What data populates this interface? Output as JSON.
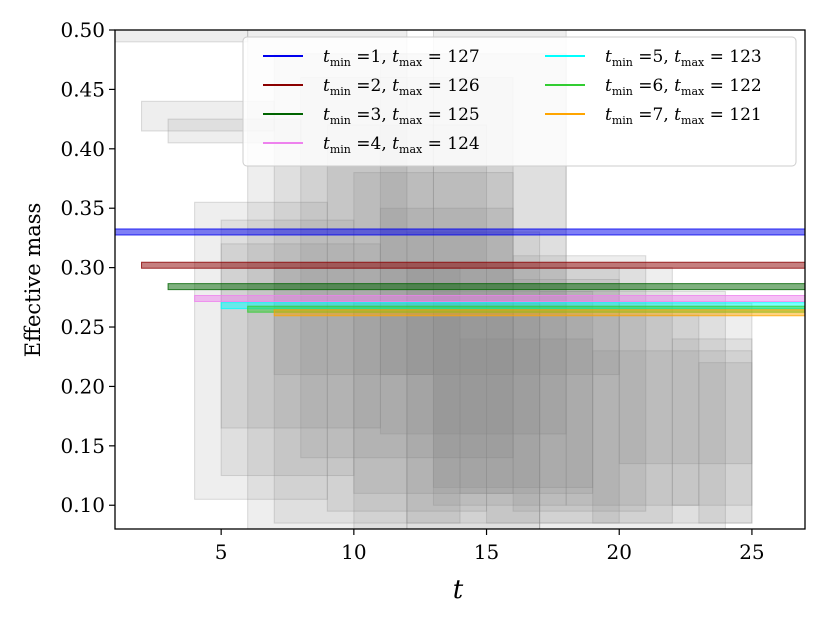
{
  "chart_data": {
    "type": "scatter",
    "xlabel": "t",
    "ylabel": "Effective mass",
    "xlim": [
      1,
      27
    ],
    "ylim": [
      0.08,
      0.5
    ],
    "x_ticks": [
      5,
      10,
      15,
      20,
      25
    ],
    "y_ticks": [
      0.1,
      0.15,
      0.2,
      0.25,
      0.3,
      0.35,
      0.4,
      0.45,
      0.5
    ],
    "grid": false,
    "legend_position": "top-right",
    "legend_columns": 2,
    "series": [
      {
        "tmin": "1",
        "tmax": "127",
        "color": "#0000ee",
        "value": 0.33,
        "x_start": 1,
        "x_end": 27
      },
      {
        "tmin": "2",
        "tmax": "126",
        "color": "#8b0000",
        "value": 0.302,
        "x_start": 2,
        "x_end": 27
      },
      {
        "tmin": "3",
        "tmax": "125",
        "color": "#006400",
        "value": 0.284,
        "x_start": 3,
        "x_end": 27
      },
      {
        "tmin": "4",
        "tmax": "124",
        "color": "#ee82ee",
        "value": 0.274,
        "x_start": 4,
        "x_end": 27
      },
      {
        "tmin": "5",
        "tmax": "123",
        "color": "#00ffff",
        "value": 0.268,
        "x_start": 5,
        "x_end": 27
      },
      {
        "tmin": "6",
        "tmax": "122",
        "color": "#32cd32",
        "value": 0.265,
        "x_start": 6,
        "x_end": 27
      },
      {
        "tmin": "7",
        "tmax": "121",
        "color": "#ffa500",
        "value": 0.262,
        "x_start": 7,
        "x_end": 27
      }
    ],
    "background_boxes": [
      {
        "x": [
          0,
          6
        ],
        "y": [
          0.49,
          0.5
        ]
      },
      {
        "x": [
          2,
          7
        ],
        "y": [
          0.415,
          0.44
        ]
      },
      {
        "x": [
          3,
          8
        ],
        "y": [
          0.405,
          0.425
        ]
      },
      {
        "x": [
          4,
          9
        ],
        "y": [
          0.105,
          0.355
        ]
      },
      {
        "x": [
          5,
          10
        ],
        "y": [
          0.125,
          0.34
        ]
      },
      {
        "x": [
          5,
          11
        ],
        "y": [
          0.165,
          0.32
        ]
      },
      {
        "x": [
          6,
          12
        ],
        "y": [
          0.08,
          0.5
        ]
      },
      {
        "x": [
          7,
          13
        ],
        "y": [
          0.21,
          0.48
        ]
      },
      {
        "x": [
          7,
          14
        ],
        "y": [
          0.085,
          0.3
        ]
      },
      {
        "x": [
          8,
          16
        ],
        "y": [
          0.14,
          0.46
        ]
      },
      {
        "x": [
          9,
          15
        ],
        "y": [
          0.095,
          0.42
        ]
      },
      {
        "x": [
          10,
          16
        ],
        "y": [
          0.11,
          0.38
        ]
      },
      {
        "x": [
          10,
          17
        ],
        "y": [
          0.08,
          0.27
        ]
      },
      {
        "x": [
          11,
          18
        ],
        "y": [
          0.16,
          0.48
        ]
      },
      {
        "x": [
          11,
          16
        ],
        "y": [
          0.21,
          0.35
        ]
      },
      {
        "x": [
          12,
          17
        ],
        "y": [
          0.08,
          0.33
        ]
      },
      {
        "x": [
          12,
          20
        ],
        "y": [
          0.085,
          0.3
        ]
      },
      {
        "x": [
          13,
          19
        ],
        "y": [
          0.115,
          0.28
        ]
      },
      {
        "x": [
          13,
          18
        ],
        "y": [
          0.1,
          0.5
        ]
      },
      {
        "x": [
          14,
          19
        ],
        "y": [
          0.11,
          0.24
        ]
      },
      {
        "x": [
          15,
          22
        ],
        "y": [
          0.085,
          0.3
        ]
      },
      {
        "x": [
          16,
          20
        ],
        "y": [
          0.21,
          0.29
        ]
      },
      {
        "x": [
          16,
          21
        ],
        "y": [
          0.095,
          0.31
        ]
      },
      {
        "x": [
          17,
          24
        ],
        "y": [
          0.08,
          0.28
        ]
      },
      {
        "x": [
          18,
          23
        ],
        "y": [
          0.1,
          0.26
        ]
      },
      {
        "x": [
          19,
          25
        ],
        "y": [
          0.085,
          0.23
        ]
      },
      {
        "x": [
          20,
          25
        ],
        "y": [
          0.135,
          0.27
        ]
      },
      {
        "x": [
          22,
          25
        ],
        "y": [
          0.1,
          0.24
        ]
      },
      {
        "x": [
          23,
          25
        ],
        "y": [
          0.085,
          0.22
        ]
      }
    ]
  }
}
